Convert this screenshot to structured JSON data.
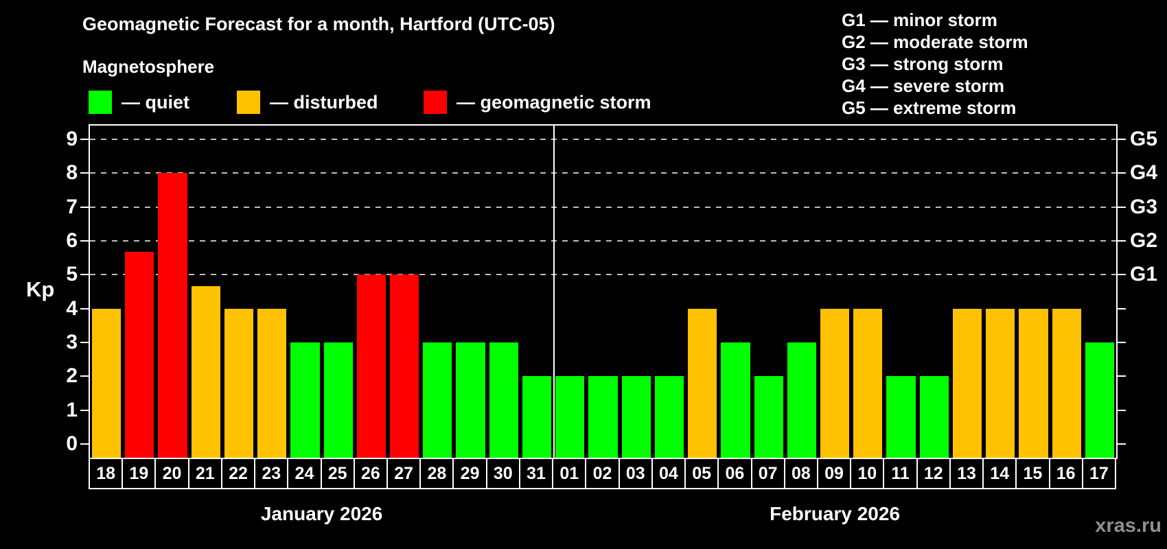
{
  "header": {
    "title": "Geomagnetic Forecast for a month, Hartford (UTC-05)",
    "subtitle": "Magnetosphere"
  },
  "legend": {
    "items": [
      {
        "name": "quiet",
        "label": "— quiet",
        "color": "#00ff00"
      },
      {
        "name": "disturbed",
        "label": "— disturbed",
        "color": "#ffc200"
      },
      {
        "name": "storm",
        "label": "— geomagnetic storm",
        "color": "#ff0000"
      }
    ]
  },
  "g_legend": {
    "items": [
      {
        "label": "G1 — minor storm"
      },
      {
        "label": "G2 — moderate storm"
      },
      {
        "label": "G3 — strong storm"
      },
      {
        "label": "G4 — severe storm"
      },
      {
        "label": "G5 — extreme storm"
      }
    ]
  },
  "watermark": "xras.ru",
  "chart_data": {
    "type": "bar",
    "title": "Geomagnetic Forecast for a month, Hartford (UTC-05)",
    "ylabel": "Kp",
    "xlabel": "",
    "ylim": [
      -0.4,
      9.4
    ],
    "yticks": [
      0,
      1,
      2,
      3,
      4,
      5,
      6,
      7,
      8,
      9
    ],
    "gridlines": [
      5,
      6,
      7,
      8,
      9
    ],
    "grid": "dashed horizontal at G-storm levels only",
    "legend_position": "top",
    "right_axis_labels": [
      {
        "label": "G1",
        "value": 5
      },
      {
        "label": "G2",
        "value": 6
      },
      {
        "label": "G3",
        "value": 7
      },
      {
        "label": "G4",
        "value": 8
      },
      {
        "label": "G5",
        "value": 9
      }
    ],
    "status_colors": {
      "quiet": "#00ff00",
      "disturbed": "#ffc200",
      "storm": "#ff0000"
    },
    "months": [
      {
        "label": "January 2026",
        "days": [
          {
            "day": "18",
            "kp": 4,
            "status": "disturbed"
          },
          {
            "day": "19",
            "kp": 5.67,
            "status": "storm"
          },
          {
            "day": "20",
            "kp": 8,
            "status": "storm"
          },
          {
            "day": "21",
            "kp": 4.67,
            "status": "disturbed"
          },
          {
            "day": "22",
            "kp": 4,
            "status": "disturbed"
          },
          {
            "day": "23",
            "kp": 4,
            "status": "disturbed"
          },
          {
            "day": "24",
            "kp": 3,
            "status": "quiet"
          },
          {
            "day": "25",
            "kp": 3,
            "status": "quiet"
          },
          {
            "day": "26",
            "kp": 5,
            "status": "storm"
          },
          {
            "day": "27",
            "kp": 5,
            "status": "storm"
          },
          {
            "day": "28",
            "kp": 3,
            "status": "quiet"
          },
          {
            "day": "29",
            "kp": 3,
            "status": "quiet"
          },
          {
            "day": "30",
            "kp": 3,
            "status": "quiet"
          },
          {
            "day": "31",
            "kp": 2,
            "status": "quiet"
          }
        ]
      },
      {
        "label": "February 2026",
        "days": [
          {
            "day": "01",
            "kp": 2,
            "status": "quiet"
          },
          {
            "day": "02",
            "kp": 2,
            "status": "quiet"
          },
          {
            "day": "03",
            "kp": 2,
            "status": "quiet"
          },
          {
            "day": "04",
            "kp": 2,
            "status": "quiet"
          },
          {
            "day": "05",
            "kp": 4,
            "status": "disturbed"
          },
          {
            "day": "06",
            "kp": 3,
            "status": "quiet"
          },
          {
            "day": "07",
            "kp": 2,
            "status": "quiet"
          },
          {
            "day": "08",
            "kp": 3,
            "status": "quiet"
          },
          {
            "day": "09",
            "kp": 4,
            "status": "disturbed"
          },
          {
            "day": "10",
            "kp": 4,
            "status": "disturbed"
          },
          {
            "day": "11",
            "kp": 2,
            "status": "quiet"
          },
          {
            "day": "12",
            "kp": 2,
            "status": "quiet"
          },
          {
            "day": "13",
            "kp": 4,
            "status": "disturbed"
          },
          {
            "day": "14",
            "kp": 4,
            "status": "disturbed"
          },
          {
            "day": "15",
            "kp": 4,
            "status": "disturbed"
          },
          {
            "day": "16",
            "kp": 4,
            "status": "disturbed"
          },
          {
            "day": "17",
            "kp": 3,
            "status": "quiet"
          }
        ]
      }
    ]
  }
}
